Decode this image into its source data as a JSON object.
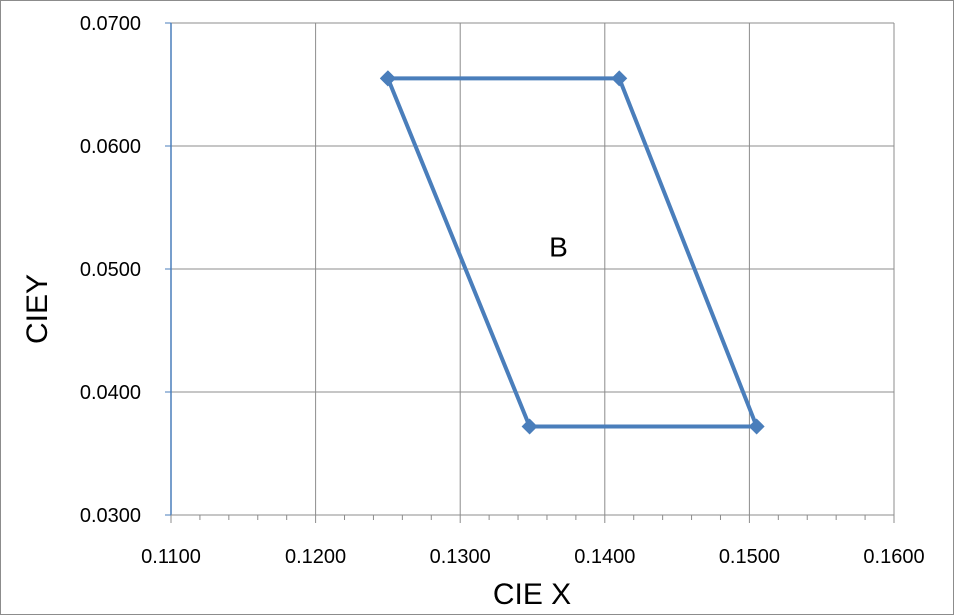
{
  "chart_data": {
    "type": "scatter",
    "title": "",
    "xlabel": "CIE X",
    "ylabel": "CIEY",
    "xlim": [
      0.11,
      0.16
    ],
    "ylim": [
      0.03,
      0.07
    ],
    "x_ticks": [
      "0.1100",
      "0.1200",
      "0.1300",
      "0.1400",
      "0.1500",
      "0.1600"
    ],
    "y_ticks": [
      "0.0300",
      "0.0400",
      "0.0500",
      "0.0600",
      "0.0700"
    ],
    "grid": true,
    "legend": "none",
    "series": [
      {
        "color": "#4a7ebb",
        "marker": "diamond",
        "points": [
          {
            "x": 0.125,
            "y": 0.0655
          },
          {
            "x": 0.141,
            "y": 0.0655
          },
          {
            "x": 0.1505,
            "y": 0.0372
          },
          {
            "x": 0.1348,
            "y": 0.0372
          },
          {
            "x": 0.125,
            "y": 0.0655
          }
        ]
      }
    ],
    "annotations": [
      {
        "text": "B",
        "x": 0.1368,
        "y": 0.051
      }
    ]
  }
}
